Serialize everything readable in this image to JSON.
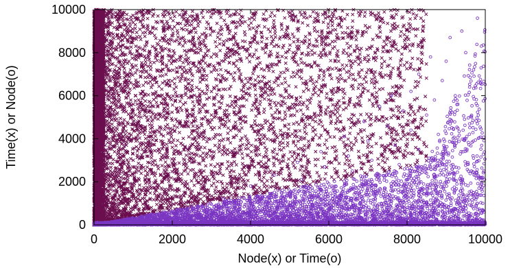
{
  "chart_data": {
    "type": "scatter",
    "xlabel": "Node(x) or Time(o)",
    "ylabel": "Time(x) or Node(o)",
    "xlim": [
      0,
      10000
    ],
    "ylim": [
      0,
      10000
    ],
    "x_ticks": [
      0,
      2000,
      4000,
      6000,
      8000,
      10000
    ],
    "y_ticks": [
      0,
      2000,
      4000,
      6000,
      8000,
      10000
    ],
    "x_tick_labels": [
      "0",
      "2000",
      "4000",
      "6000",
      "8000",
      "10000"
    ],
    "y_tick_labels": [
      "0",
      "2000",
      "4000",
      "6000",
      "8000",
      "10000"
    ],
    "grid": false,
    "series": [
      {
        "marker": "x",
        "color": "#6b0f4f",
        "region": "above diagonal y > x/3, densest near x = 0",
        "points": [
          [
            50,
            9950
          ],
          [
            120,
            9600
          ],
          [
            300,
            9200
          ],
          [
            600,
            9800
          ],
          [
            1000,
            9400
          ],
          [
            1500,
            9700
          ],
          [
            2100,
            9900
          ],
          [
            2600,
            9500
          ],
          [
            3200,
            9800
          ],
          [
            3800,
            9650
          ],
          [
            4400,
            9950
          ],
          [
            5000,
            9700
          ],
          [
            5600,
            9900
          ],
          [
            6200,
            9600
          ],
          [
            6800,
            9800
          ],
          [
            7400,
            9400
          ],
          [
            7900,
            9200
          ],
          [
            8400,
            9000
          ],
          [
            200,
            8500
          ],
          [
            700,
            8800
          ],
          [
            1300,
            8300
          ],
          [
            1900,
            8600
          ],
          [
            2500,
            8100
          ],
          [
            3100,
            8500
          ],
          [
            3700,
            8200
          ],
          [
            4300,
            8700
          ],
          [
            4900,
            8000
          ],
          [
            5500,
            8400
          ],
          [
            6100,
            8200
          ],
          [
            6700,
            8600
          ],
          [
            100,
            7500
          ],
          [
            500,
            7800
          ],
          [
            1100,
            7200
          ],
          [
            1700,
            7600
          ],
          [
            2300,
            7100
          ],
          [
            2900,
            7400
          ],
          [
            3500,
            7000
          ],
          [
            4100,
            7300
          ],
          [
            4700,
            6800
          ],
          [
            5300,
            7100
          ],
          [
            80,
            6500
          ],
          [
            400,
            6200
          ],
          [
            900,
            6700
          ],
          [
            1500,
            6100
          ],
          [
            2100,
            6400
          ],
          [
            2700,
            6000
          ],
          [
            3300,
            6300
          ],
          [
            3900,
            5800
          ],
          [
            4500,
            5600
          ],
          [
            150,
            5500
          ],
          [
            600,
            5200
          ],
          [
            1200,
            5000
          ],
          [
            1800,
            5300
          ],
          [
            2400,
            4800
          ],
          [
            3000,
            5100
          ],
          [
            3600,
            4600
          ],
          [
            4200,
            4300
          ],
          [
            60,
            4500
          ],
          [
            300,
            4000
          ],
          [
            800,
            4200
          ],
          [
            1400,
            3800
          ],
          [
            2000,
            3600
          ],
          [
            2600,
            3900
          ],
          [
            3200,
            3400
          ],
          [
            3800,
            3100
          ],
          [
            40,
            3500
          ],
          [
            250,
            3000
          ],
          [
            700,
            2800
          ],
          [
            1200,
            2600
          ],
          [
            1700,
            2300
          ],
          [
            2300,
            2500
          ],
          [
            2900,
            2100
          ],
          [
            3400,
            1900
          ],
          [
            30,
            2000
          ],
          [
            200,
            1500
          ],
          [
            500,
            1800
          ],
          [
            900,
            1200
          ],
          [
            1300,
            1400
          ],
          [
            1700,
            900
          ],
          [
            2100,
            1000
          ],
          [
            20,
            1000
          ],
          [
            150,
            500
          ],
          [
            400,
            700
          ],
          [
            700,
            400
          ]
        ]
      },
      {
        "marker": "o",
        "color": "#7b35c2",
        "region": "below diagonal y < x/3 up to ~x = 9000, densest near y = 0",
        "points": [
          [
            9800,
            9600
          ],
          [
            9400,
            9000
          ],
          [
            9100,
            8700
          ],
          [
            9900,
            8300
          ],
          [
            9500,
            8000
          ],
          [
            9000,
            7600
          ],
          [
            8600,
            7800
          ],
          [
            9700,
            7200
          ],
          [
            8300,
            7000
          ],
          [
            8900,
            6700
          ],
          [
            9600,
            6400
          ],
          [
            8100,
            6200
          ],
          [
            7600,
            6000
          ],
          [
            8700,
            5800
          ],
          [
            9300,
            5600
          ],
          [
            7300,
            5500
          ],
          [
            7900,
            5300
          ],
          [
            8500,
            5100
          ],
          [
            9100,
            4900
          ],
          [
            9800,
            4700
          ],
          [
            6900,
            4800
          ],
          [
            7500,
            4600
          ],
          [
            8100,
            4400
          ],
          [
            8800,
            4200
          ],
          [
            9500,
            4000
          ],
          [
            6400,
            4100
          ],
          [
            7000,
            3900
          ],
          [
            7700,
            3700
          ],
          [
            8300,
            3500
          ],
          [
            9000,
            3300
          ],
          [
            9700,
            3100
          ],
          [
            5800,
            3400
          ],
          [
            6500,
            3200
          ],
          [
            7100,
            3000
          ],
          [
            7800,
            2800
          ],
          [
            8500,
            2600
          ],
          [
            9200,
            2400
          ],
          [
            9900,
            2200
          ],
          [
            5200,
            2900
          ],
          [
            5900,
            2700
          ],
          [
            6600,
            2500
          ],
          [
            7300,
            2300
          ],
          [
            8000,
            2100
          ],
          [
            8700,
            1900
          ],
          [
            9400,
            1700
          ],
          [
            4600,
            2300
          ],
          [
            5300,
            2100
          ],
          [
            6000,
            1900
          ],
          [
            6700,
            1700
          ],
          [
            7400,
            1500
          ],
          [
            8100,
            1300
          ],
          [
            8800,
            1100
          ],
          [
            9500,
            900
          ],
          [
            4000,
            1800
          ],
          [
            4700,
            1600
          ],
          [
            5400,
            1400
          ],
          [
            6100,
            1200
          ],
          [
            6800,
            1000
          ],
          [
            7500,
            800
          ],
          [
            8200,
            600
          ],
          [
            8900,
            400
          ],
          [
            9600,
            200
          ],
          [
            3300,
            1200
          ],
          [
            4000,
            1000
          ],
          [
            4700,
            800
          ],
          [
            5400,
            600
          ],
          [
            6100,
            400
          ],
          [
            6800,
            200
          ],
          [
            2600,
            800
          ],
          [
            3300,
            600
          ],
          [
            4000,
            400
          ],
          [
            4700,
            200
          ],
          [
            1900,
            500
          ],
          [
            2600,
            300
          ],
          [
            3300,
            150
          ],
          [
            1200,
            300
          ],
          [
            1900,
            150
          ],
          [
            600,
            120
          ],
          [
            1000,
            50
          ],
          [
            3000,
            60
          ],
          [
            5000,
            80
          ],
          [
            7000,
            40
          ],
          [
            9000,
            70
          ],
          [
            10000,
            30
          ]
        ]
      }
    ]
  }
}
